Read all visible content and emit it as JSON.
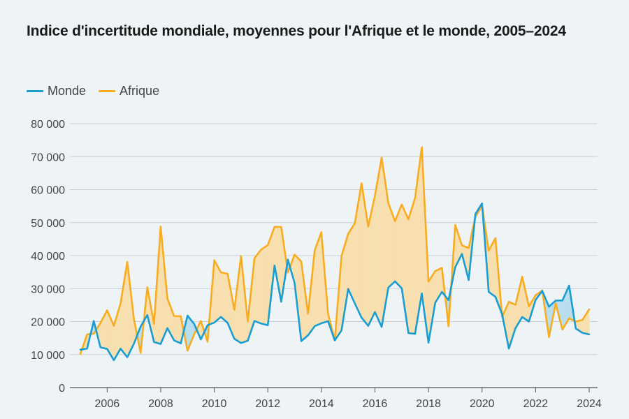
{
  "chart_data": {
    "type": "line",
    "title": "Indice d'incertitude mondiale, moyennes pour l'Afrique et le monde, 2005–2024",
    "xlabel": "",
    "ylabel": "",
    "xlim": [
      2005,
      2024
    ],
    "ylim": [
      0,
      80000
    ],
    "grid": true,
    "legend_position": "top-left",
    "y_ticks": [
      0,
      10000,
      20000,
      30000,
      40000,
      50000,
      60000,
      70000,
      80000
    ],
    "y_tick_labels": [
      "0",
      "10 000",
      "20 000",
      "30 000",
      "40 000",
      "50 000",
      "60 000",
      "70 000",
      "80 000"
    ],
    "x_ticks": [
      2006,
      2008,
      2010,
      2012,
      2014,
      2016,
      2018,
      2020,
      2022,
      2024
    ],
    "x_tick_labels": [
      "2006",
      "2008",
      "2010",
      "2012",
      "2014",
      "2016",
      "2018",
      "2020",
      "2022",
      "2024"
    ],
    "shading": {
      "africa_above": "#f7dfb0",
      "world_above": "#b9deee"
    },
    "series": [
      {
        "name": "Monde",
        "color": "#1a9ed2",
        "x": [
          2005.0,
          2005.25,
          2005.5,
          2005.75,
          2006.0,
          2006.25,
          2006.5,
          2006.75,
          2007.0,
          2007.25,
          2007.5,
          2007.75,
          2008.0,
          2008.25,
          2008.5,
          2008.75,
          2009.0,
          2009.25,
          2009.5,
          2009.75,
          2010.0,
          2010.25,
          2010.5,
          2010.75,
          2011.0,
          2011.25,
          2011.5,
          2011.75,
          2012.0,
          2012.25,
          2012.5,
          2012.75,
          2013.0,
          2013.25,
          2013.5,
          2013.75,
          2014.0,
          2014.25,
          2014.5,
          2014.75,
          2015.0,
          2015.25,
          2015.5,
          2015.75,
          2016.0,
          2016.25,
          2016.5,
          2016.75,
          2017.0,
          2017.25,
          2017.5,
          2017.75,
          2018.0,
          2018.25,
          2018.5,
          2018.75,
          2019.0,
          2019.25,
          2019.5,
          2019.75,
          2020.0,
          2020.25,
          2020.5,
          2020.75,
          2021.0,
          2021.25,
          2021.5,
          2021.75,
          2022.0,
          2022.25,
          2022.5,
          2022.75,
          2023.0,
          2023.25,
          2023.5,
          2023.75,
          2024.0
        ],
        "values": [
          11500,
          11800,
          20200,
          12200,
          11700,
          8300,
          11800,
          9200,
          13300,
          18500,
          22000,
          13800,
          13200,
          18000,
          14300,
          13400,
          21800,
          19300,
          14600,
          18900,
          19700,
          21400,
          19600,
          14800,
          13500,
          14200,
          20200,
          19400,
          18900,
          37000,
          26000,
          38800,
          31700,
          14100,
          15800,
          18600,
          19500,
          20100,
          14300,
          17300,
          29900,
          25500,
          21200,
          18700,
          22900,
          18400,
          30300,
          32200,
          30100,
          16500,
          16300,
          28500,
          13600,
          25700,
          29000,
          26500,
          36500,
          40500,
          32600,
          52600,
          55800,
          29000,
          27500,
          22200,
          11800,
          18000,
          21400,
          20000,
          26600,
          29300,
          24500,
          26400,
          26400,
          30900,
          17900,
          16600,
          16100
        ]
      },
      {
        "name": "Afrique",
        "color": "#f7ad1f",
        "x": [
          2005.0,
          2005.25,
          2005.5,
          2005.75,
          2006.0,
          2006.25,
          2006.5,
          2006.75,
          2007.0,
          2007.25,
          2007.5,
          2007.75,
          2008.0,
          2008.25,
          2008.5,
          2008.75,
          2009.0,
          2009.25,
          2009.5,
          2009.75,
          2010.0,
          2010.25,
          2010.5,
          2010.75,
          2011.0,
          2011.25,
          2011.5,
          2011.75,
          2012.0,
          2012.25,
          2012.5,
          2012.75,
          2013.0,
          2013.25,
          2013.5,
          2013.75,
          2014.0,
          2014.25,
          2014.5,
          2014.75,
          2015.0,
          2015.25,
          2015.5,
          2015.75,
          2016.0,
          2016.25,
          2016.5,
          2016.75,
          2017.0,
          2017.25,
          2017.5,
          2017.75,
          2018.0,
          2018.25,
          2018.5,
          2018.75,
          2019.0,
          2019.25,
          2019.5,
          2019.75,
          2020.0,
          2020.25,
          2020.5,
          2020.75,
          2021.0,
          2021.25,
          2021.5,
          2021.75,
          2022.0,
          2022.25,
          2022.5,
          2022.75,
          2023.0,
          2023.25,
          2023.5,
          2023.75,
          2024.0
        ],
        "values": [
          10200,
          16100,
          16300,
          19600,
          23400,
          18700,
          25500,
          38100,
          20800,
          10500,
          30400,
          19300,
          48800,
          27000,
          21700,
          21600,
          11200,
          16100,
          20200,
          13900,
          38600,
          34900,
          34500,
          23600,
          39900,
          20000,
          39200,
          41800,
          43200,
          48700,
          48700,
          34900,
          40300,
          38200,
          22400,
          41600,
          47100,
          22400,
          14300,
          39800,
          46600,
          49800,
          61900,
          48800,
          58200,
          69700,
          56000,
          50400,
          55500,
          51000,
          57500,
          72800,
          32100,
          35300,
          36300,
          18600,
          49300,
          43100,
          42300,
          51700,
          55100,
          41500,
          45300,
          21400,
          26000,
          25100,
          33600,
          24600,
          28000,
          29400,
          15300,
          25500,
          17600,
          21000,
          20000,
          20500,
          23700
        ]
      }
    ]
  }
}
